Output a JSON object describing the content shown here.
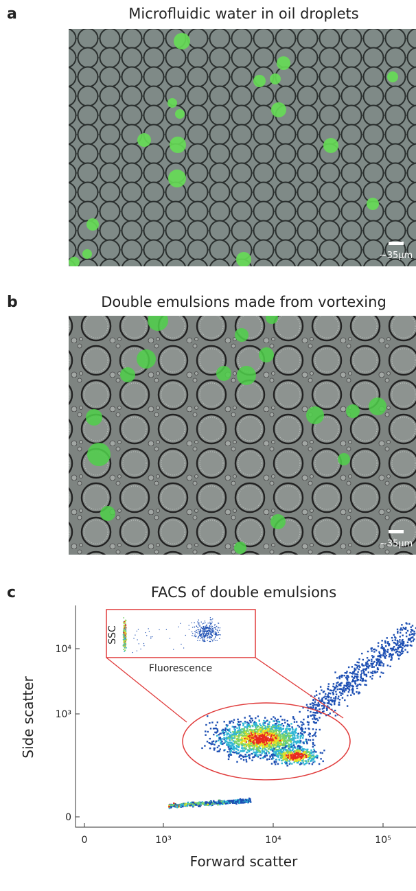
{
  "panels": [
    {
      "label": "a",
      "title": "Microfluidic water in oil droplets",
      "scale_bar": "~35µm"
    },
    {
      "label": "b",
      "title": "Double emulsions made from vortexing",
      "scale_bar": "~35µm"
    },
    {
      "label": "c",
      "title": "FACS of double emulsions",
      "x_label": "Forward scatter",
      "y_label": "Side scatter",
      "x_ticks": [
        "0",
        "10³",
        "10⁴",
        "10⁵"
      ],
      "y_ticks": [
        "0",
        "10³",
        "10⁴"
      ],
      "inset": {
        "y_label": "SSC",
        "x_label": "Fluorescence"
      }
    }
  ]
}
